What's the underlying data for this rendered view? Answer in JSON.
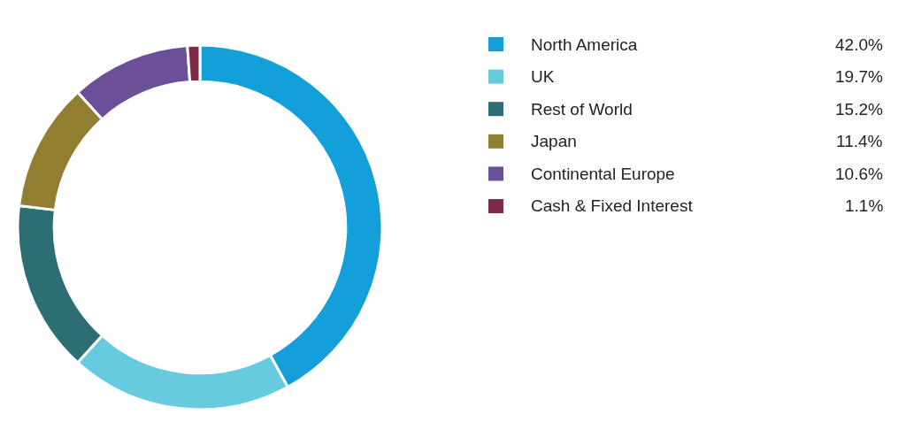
{
  "chart_data": {
    "type": "donut",
    "categories": [
      "North America",
      "UK",
      "Rest of World",
      "Japan",
      "Continental Europe",
      "Cash & Fixed Interest"
    ],
    "values": [
      42.0,
      19.7,
      15.2,
      11.4,
      10.6,
      1.1
    ],
    "value_labels": [
      "42.0%",
      "19.7%",
      "15.2%",
      "11.4%",
      "10.6%",
      "1.1%"
    ],
    "colors": [
      "#139fd9",
      "#67cbe0",
      "#2d6e75",
      "#927e31",
      "#6b4f98",
      "#7b2c4c"
    ],
    "legend": "right"
  }
}
